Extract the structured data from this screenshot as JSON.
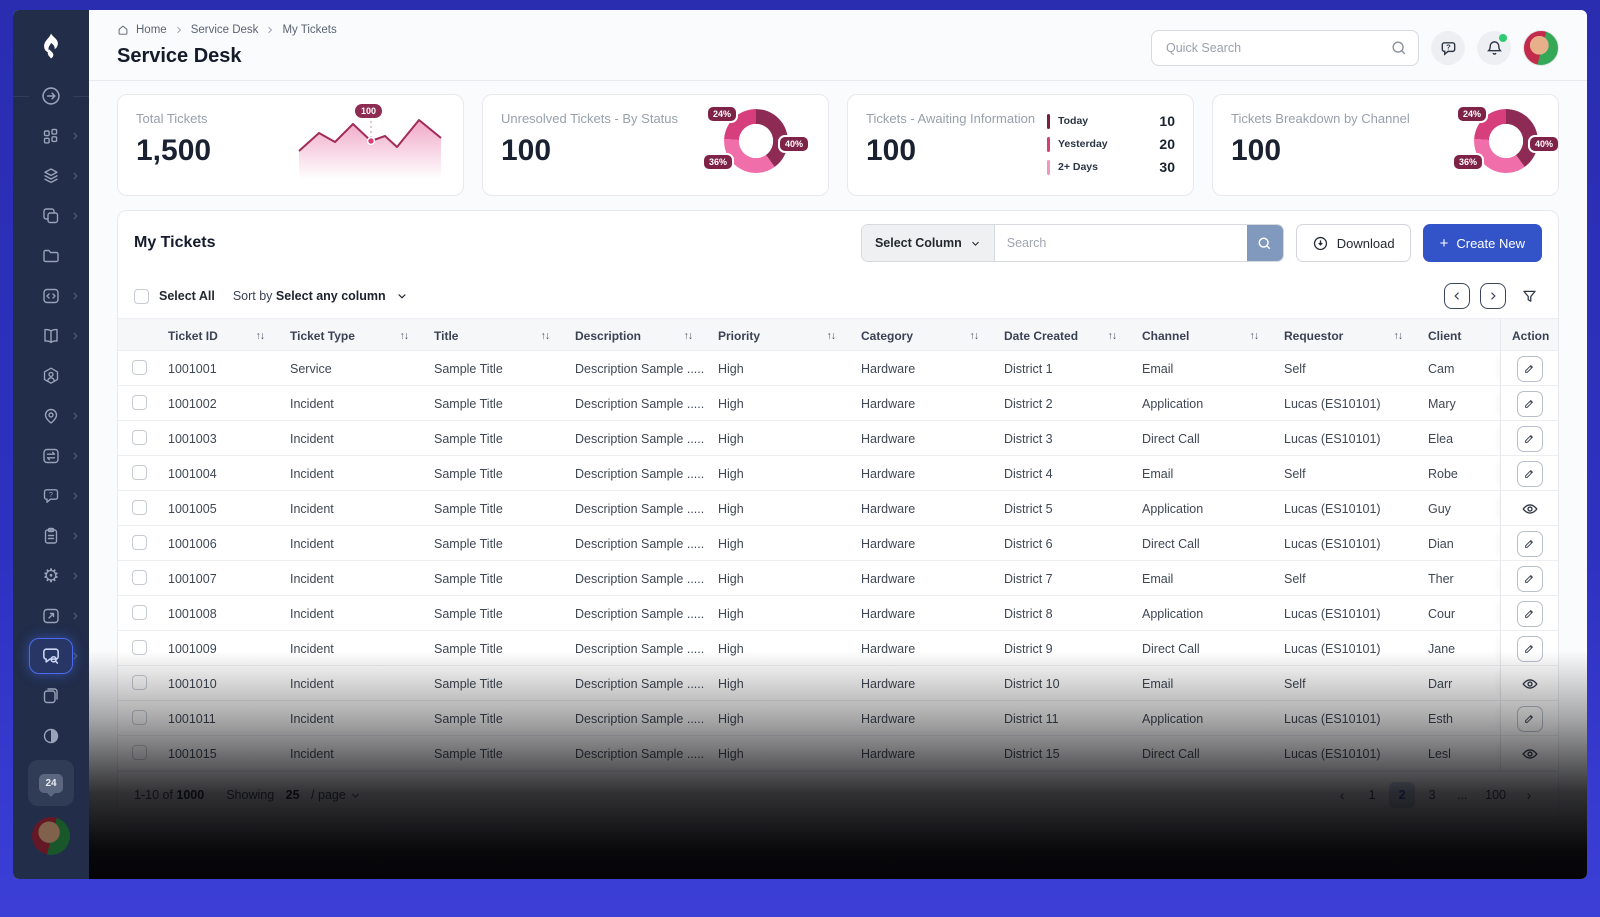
{
  "breadcrumb": {
    "items": [
      "Home",
      "Service Desk",
      "My Tickets"
    ]
  },
  "page_title": "Service Desk",
  "header": {
    "search_placeholder": "Quick Search",
    "icons": [
      {
        "name": "help-icon"
      },
      {
        "name": "bell-icon",
        "dot": true
      }
    ]
  },
  "cards": [
    {
      "label": "Total Tickets",
      "value": "1,500",
      "tooltip": "100"
    },
    {
      "label": "Unresolved Tickets - By Status",
      "value": "100",
      "pcts": [
        "24%",
        "40%",
        "36%"
      ],
      "values": [
        24,
        40,
        36
      ]
    },
    {
      "label": "Tickets - Awaiting Information",
      "value": "100",
      "legend": [
        {
          "label": "Today",
          "value": "10",
          "color": "#7c1f3e"
        },
        {
          "label": "Yesterday",
          "value": "20",
          "color": "#d63f76"
        },
        {
          "label": "2+ Days",
          "value": "30",
          "color": "#f395c1"
        }
      ]
    },
    {
      "label": "Tickets Breakdown by Channel",
      "value": "100",
      "pcts": [
        "24%",
        "40%",
        "36%"
      ],
      "values": [
        24,
        40,
        36
      ]
    }
  ],
  "panel": {
    "title": "My Tickets",
    "select_column_label": "Select Column",
    "search_placeholder": "Search",
    "download_label": "Download",
    "create_plus": "+",
    "create_new_label": "Create New",
    "select_all_label": "Select All",
    "sort_by_label": "Sort by",
    "sort_value": "Select any column"
  },
  "table": {
    "columns": [
      {
        "label": "Ticket ID",
        "sortable": true
      },
      {
        "label": "Ticket Type",
        "sortable": true
      },
      {
        "label": "Title",
        "sortable": true
      },
      {
        "label": "Description",
        "sortable": true
      },
      {
        "label": "Priority",
        "sortable": true
      },
      {
        "label": "Category",
        "sortable": true
      },
      {
        "label": "Date Created",
        "sortable": true
      },
      {
        "label": "Channel",
        "sortable": true
      },
      {
        "label": "Requestor",
        "sortable": true
      },
      {
        "label": "Client",
        "sortable": false
      },
      {
        "label": "Action",
        "sortable": false
      }
    ],
    "rows": [
      {
        "id": "1001001",
        "type": "Service",
        "title": "Sample Title",
        "description": "Description Sample .....",
        "priority": "High",
        "category": "Hardware",
        "date": "District 1",
        "channel": "Email",
        "requestor": "Self",
        "client": "Cam",
        "action": "edit"
      },
      {
        "id": "1001002",
        "type": "Incident",
        "title": "Sample Title",
        "description": "Description Sample .....",
        "priority": "High",
        "category": "Hardware",
        "date": "District 2",
        "channel": "Application",
        "requestor": "Lucas (ES10101)",
        "client": "Mary",
        "action": "edit"
      },
      {
        "id": "1001003",
        "type": "Incident",
        "title": "Sample Title",
        "description": "Description Sample .....",
        "priority": "High",
        "category": "Hardware",
        "date": "District 3",
        "channel": "Direct Call",
        "requestor": "Lucas (ES10101)",
        "client": "Elea",
        "action": "edit"
      },
      {
        "id": "1001004",
        "type": "Incident",
        "title": "Sample Title",
        "description": "Description Sample .....",
        "priority": "High",
        "category": "Hardware",
        "date": "District 4",
        "channel": "Email",
        "requestor": "Self",
        "client": "Robe",
        "action": "edit"
      },
      {
        "id": "1001005",
        "type": "Incident",
        "title": "Sample Title",
        "description": "Description Sample .....",
        "priority": "High",
        "category": "Hardware",
        "date": "District 5",
        "channel": "Application",
        "requestor": "Lucas (ES10101)",
        "client": "Guy",
        "action": "view"
      },
      {
        "id": "1001006",
        "type": "Incident",
        "title": "Sample Title",
        "description": "Description Sample .....",
        "priority": "High",
        "category": "Hardware",
        "date": "District 6",
        "channel": "Direct Call",
        "requestor": "Lucas (ES10101)",
        "client": "Dian",
        "action": "edit"
      },
      {
        "id": "1001007",
        "type": "Incident",
        "title": "Sample Title",
        "description": "Description Sample .....",
        "priority": "High",
        "category": "Hardware",
        "date": "District 7",
        "channel": "Email",
        "requestor": "Self",
        "client": "Ther",
        "action": "edit"
      },
      {
        "id": "1001008",
        "type": "Incident",
        "title": "Sample Title",
        "description": "Description Sample .....",
        "priority": "High",
        "category": "Hardware",
        "date": "District 8",
        "channel": "Application",
        "requestor": "Lucas (ES10101)",
        "client": "Cour",
        "action": "edit"
      },
      {
        "id": "1001009",
        "type": "Incident",
        "title": "Sample Title",
        "description": "Description Sample .....",
        "priority": "High",
        "category": "Hardware",
        "date": "District 9",
        "channel": "Direct Call",
        "requestor": "Lucas (ES10101)",
        "client": "Jane",
        "action": "edit"
      },
      {
        "id": "1001010",
        "type": "Incident",
        "title": "Sample Title",
        "description": "Description Sample .....",
        "priority": "High",
        "category": "Hardware",
        "date": "District 10",
        "channel": "Email",
        "requestor": "Self",
        "client": "Darr",
        "action": "view"
      },
      {
        "id": "1001011",
        "type": "Incident",
        "title": "Sample Title",
        "description": "Description Sample .....",
        "priority": "High",
        "category": "Hardware",
        "date": "District 11",
        "channel": "Application",
        "requestor": "Lucas (ES10101)",
        "client": "Esth",
        "action": "edit"
      },
      {
        "id": "1001015",
        "type": "Incident",
        "title": "Sample Title",
        "description": "Description Sample .....",
        "priority": "High",
        "category": "Hardware",
        "date": "District 15",
        "channel": "Direct Call",
        "requestor": "Lucas (ES10101)",
        "client": "Lesl",
        "action": "view"
      }
    ]
  },
  "pagination": {
    "summary_prefix": "1-10 of",
    "total": "1000",
    "showing_label": "Showing",
    "per_page": "25",
    "per_page_suffix": "/ page",
    "pages": [
      "1",
      "2",
      "3",
      "...",
      "100"
    ],
    "active_page": "2"
  },
  "sidebar": {
    "badge": "24",
    "items": [
      {
        "icon": "arrow-circle-icon",
        "divider": true
      },
      {
        "icon": "dashboard-icon",
        "chevron": true
      },
      {
        "icon": "layers-icon",
        "chevron": true
      },
      {
        "icon": "copy-icon",
        "chevron": true
      },
      {
        "icon": "folder-icon"
      },
      {
        "icon": "code-icon",
        "chevron": true
      },
      {
        "icon": "book-icon",
        "chevron": true
      },
      {
        "icon": "user-hexagon-icon"
      },
      {
        "icon": "location-icon",
        "chevron": true
      },
      {
        "icon": "swap-icon",
        "chevron": true
      },
      {
        "icon": "help-chat-icon",
        "chevron": true
      },
      {
        "icon": "clipboard-icon",
        "chevron": true
      },
      {
        "icon": "settings-icon",
        "chevron": true
      },
      {
        "icon": "external-link-icon",
        "chevron": true
      },
      {
        "icon": "chat-search-icon",
        "chevron": true,
        "active": true
      },
      {
        "icon": "pages-icon"
      },
      {
        "icon": "contrast-icon"
      },
      {
        "icon": "badge-tile"
      }
    ]
  }
}
